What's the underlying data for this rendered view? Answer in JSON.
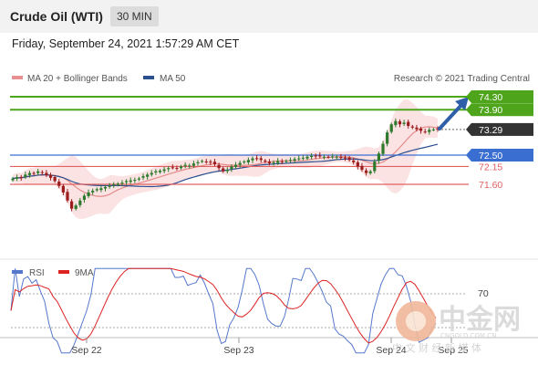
{
  "header": {
    "title": "Crude Oil (WTI)",
    "interval": "30 MIN"
  },
  "datetime": "Friday, September 24, 2021 1:57:29 AM CET",
  "legend": {
    "ma20": "MA 20 + Bollinger Bands",
    "ma50": "MA 50",
    "source": "Research © 2021 Trading Central"
  },
  "rsi_legend": {
    "rsi": "RSI",
    "ma9": "9MA"
  },
  "watermark": {
    "name": "中金网",
    "domain": "CNGOLD.COM.CN",
    "tagline": "中 文 财 经 新 媒 体"
  },
  "colors": {
    "green": "#4ea51c",
    "blue": "#3a6fd1",
    "red": "#e06060",
    "dark": "#333333",
    "ma50": "#2c4f8f",
    "rsi": "#5577cc"
  },
  "chart_data": {
    "type": "candlestick",
    "title": "Crude Oil (WTI)",
    "interval": "30 MIN",
    "x_ticks": [
      "Sep 22",
      "Sep 23",
      "Sep 24",
      "Sep 25"
    ],
    "y_visible_range": [
      71.2,
      74.6
    ],
    "levels": [
      {
        "value": 74.3,
        "label": "74.30",
        "kind": "resistance",
        "color": "#4ea51c"
      },
      {
        "value": 73.9,
        "label": "73.90",
        "kind": "resistance",
        "color": "#4ea51c"
      },
      {
        "value": 73.29,
        "label": "73.29",
        "kind": "last-price",
        "color": "#333333"
      },
      {
        "value": 72.5,
        "label": "72.50",
        "kind": "pivot",
        "color": "#3a6fd1"
      },
      {
        "value": 72.15,
        "label": "72.15",
        "kind": "support",
        "color": "#e06060"
      },
      {
        "value": 71.6,
        "label": "71.60",
        "kind": "support",
        "color": "#e06060"
      }
    ],
    "candles_close": [
      71.78,
      71.82,
      71.8,
      71.9,
      71.95,
      71.93,
      72.0,
      71.96,
      71.88,
      71.8,
      71.7,
      71.55,
      71.35,
      71.1,
      70.85,
      70.95,
      71.1,
      71.25,
      71.35,
      71.4,
      71.45,
      71.48,
      71.52,
      71.55,
      71.6,
      71.62,
      71.65,
      71.7,
      71.72,
      71.74,
      71.78,
      71.85,
      71.9,
      71.95,
      72.0,
      72.02,
      72.06,
      72.1,
      72.12,
      72.1,
      72.15,
      72.2,
      72.18,
      72.24,
      72.28,
      72.32,
      72.3,
      72.28,
      72.22,
      72.1,
      72.0,
      72.05,
      72.15,
      72.2,
      72.26,
      72.3,
      72.35,
      72.4,
      72.38,
      72.35,
      72.3,
      72.25,
      72.28,
      72.32,
      72.3,
      72.32,
      72.35,
      72.38,
      72.4,
      72.42,
      72.45,
      72.48,
      72.47,
      72.46,
      72.45,
      72.44,
      72.46,
      72.45,
      72.42,
      72.4,
      72.35,
      72.28,
      72.15,
      72.05,
      71.95,
      72.0,
      72.3,
      72.55,
      72.85,
      73.2,
      73.45,
      73.55,
      73.45,
      73.5,
      73.4,
      73.35,
      73.3,
      73.25,
      73.22,
      73.28,
      73.29,
      73.29
    ],
    "rsi": {
      "levels": [
        70,
        30
      ],
      "labels": [
        "70"
      ],
      "series_visible": [
        "RSI",
        "9MA"
      ]
    },
    "annotation": "up-arrow-target"
  }
}
